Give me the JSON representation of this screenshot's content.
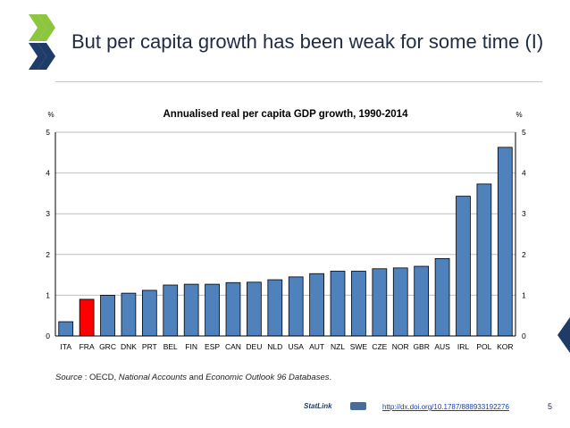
{
  "slide": {
    "title": "But per capita growth has been weak for some time (I)",
    "page_number": "5"
  },
  "footer": {
    "source_label": "Source",
    "source_sep": " : OECD, ",
    "source_italic_1": "National Accounts",
    "source_and": " and ",
    "source_italic_2": "Economic Outlook 96 Databases",
    "source_end": ".",
    "statlink_label": "StatLink",
    "link_text": "http://dx.doi.org/10.1787/888933192276"
  },
  "colors": {
    "bar": "#4f81bd",
    "highlight": "#ff0000",
    "bar_edge": "#000000",
    "grid": "#bfbfbf",
    "title_text": "#1f2a44",
    "logo_green": "#8cc63f",
    "logo_dark": "#1f3b68"
  },
  "icons": {
    "logo": "oecd-chevron-logo",
    "corner": "chevron-right-icon"
  },
  "chart_data": {
    "type": "bar",
    "title": "Annualised real per capita GDP growth, 1990-2014",
    "ylabel_left": "%",
    "ylabel_right": "%",
    "ylim": [
      0,
      5
    ],
    "yticks": [
      0,
      1,
      2,
      3,
      4,
      5
    ],
    "grid": true,
    "categories": [
      "ITA",
      "FRA",
      "GRC",
      "DNK",
      "PRT",
      "BEL",
      "FIN",
      "ESP",
      "CAN",
      "DEU",
      "NLD",
      "USA",
      "AUT",
      "NZL",
      "SWE",
      "CZE",
      "NOR",
      "GBR",
      "AUS",
      "IRL",
      "POL",
      "KOR"
    ],
    "values": [
      0.35,
      0.9,
      1.0,
      1.05,
      1.12,
      1.25,
      1.27,
      1.27,
      1.31,
      1.32,
      1.38,
      1.45,
      1.53,
      1.59,
      1.59,
      1.65,
      1.67,
      1.71,
      1.9,
      3.43,
      3.73,
      4.63
    ],
    "highlight": "FRA"
  }
}
